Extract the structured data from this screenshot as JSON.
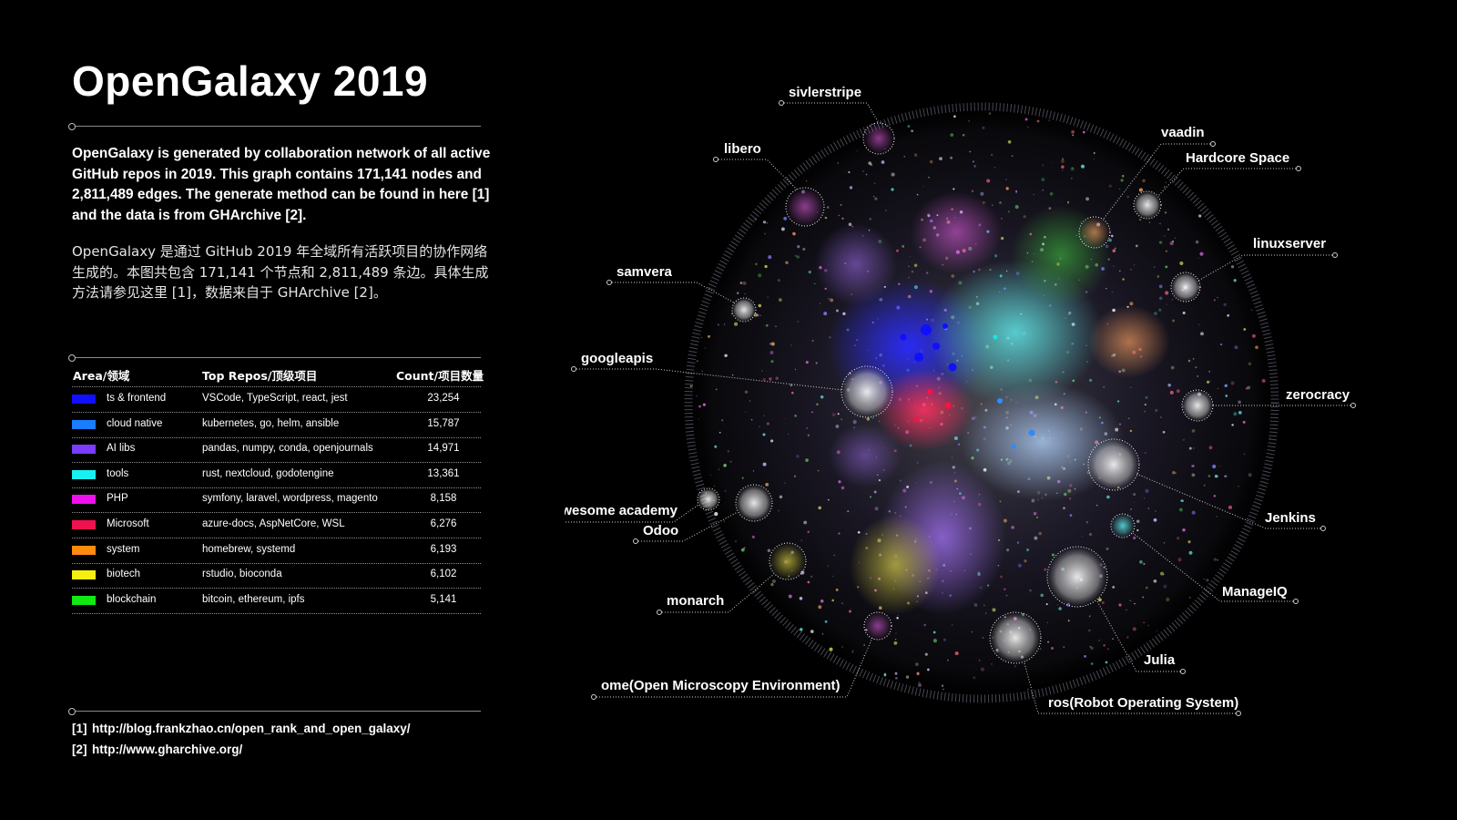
{
  "title": "OpenGalaxy 2019",
  "description_en": "OpenGalaxy is generated by collaboration network of all active GitHub repos in 2019. This graph contains 171,141 nodes and 2,811,489 edges. The generate method can be found in here [1] and the data is from GHArchive [2].",
  "description_zh": "OpenGalaxy 是通过 GitHub 2019 年全域所有活跃项目的协作网络生成的。本图共包含 171,141 个节点和 2,811,489 条边。具体生成方法请参见这里 [1]，数据来自于 GHArchive [2]。",
  "table": {
    "headers": {
      "area": "Area/领域",
      "repos": "Top Repos/顶级项目",
      "count": "Count/项目数量"
    },
    "rows": [
      {
        "area": "ts & frontend",
        "repos": "VSCode, TypeScript, react, jest",
        "count": "23,254",
        "color": "#1010ff"
      },
      {
        "area": "cloud native",
        "repos": "kubernetes, go, helm, ansible",
        "count": "15,787",
        "color": "#1a7cff"
      },
      {
        "area": "AI libs",
        "repos": "pandas, numpy, conda, openjournals",
        "count": "14,971",
        "color": "#7a3cff"
      },
      {
        "area": "tools",
        "repos": "rust, nextcloud, godotengine",
        "count": "13,361",
        "color": "#16f2f2"
      },
      {
        "area": "PHP",
        "repos": "symfony, laravel, wordpress, magento",
        "count": "8,158",
        "color": "#ee10ee"
      },
      {
        "area": "Microsoft",
        "repos": "azure-docs, AspNetCore, WSL",
        "count": "6,276",
        "color": "#f0124e"
      },
      {
        "area": "system",
        "repos": "homebrew, systemd",
        "count": "6,193",
        "color": "#ff8a10"
      },
      {
        "area": "biotech",
        "repos": "rstudio, bioconda",
        "count": "6,102",
        "color": "#f5f010"
      },
      {
        "area": "blockchain",
        "repos": "bitcoin, ethereum, ipfs",
        "count": "5,141",
        "color": "#12e812"
      }
    ]
  },
  "references": [
    {
      "num": "[1]",
      "url": "http://blog.frankzhao.cn/open_rank_and_open_galaxy/"
    },
    {
      "num": "[2]",
      "url": "http://www.gharchive.org/"
    }
  ],
  "galaxy_labels": [
    "sivlerstripe",
    "libero",
    "vaadin",
    "Hardcore Space",
    "linuxserver",
    "samvera",
    "googleapis",
    "zerocracy",
    "awesome academy",
    "Odoo",
    "Jenkins",
    "monarch",
    "ManageIQ",
    "Julia",
    "ome(Open Microscopy Environment)",
    "ros(Robot Operating System)"
  ]
}
